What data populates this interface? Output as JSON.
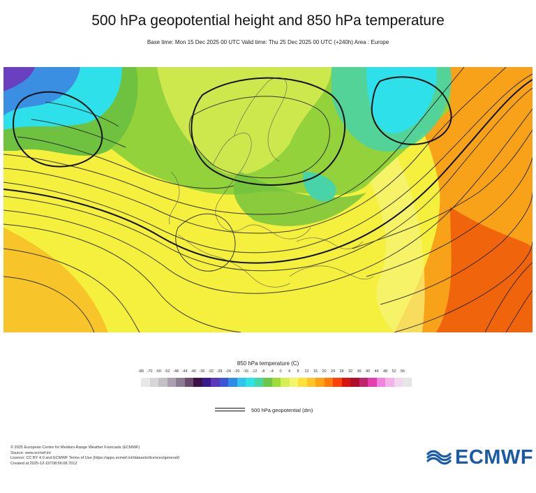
{
  "title": "500 hPa geopotential height and 850 hPa temperature",
  "subtitle": "Base time: Mon 15 Dec 2025 00 UTC Valid time: Thu 25 Dec 2025 00 UTC (+240h) Area : Europe",
  "legend": {
    "title": "850 hPa temperature (C)",
    "ticks": [
      "-80",
      "-70",
      "-60",
      "-52",
      "-48",
      "-44",
      "-40",
      "-36",
      "-32",
      "-28",
      "-24",
      "-20",
      "-16",
      "-12",
      "-8",
      "-4",
      "0",
      "4",
      "8",
      "12",
      "16",
      "20",
      "24",
      "28",
      "32",
      "36",
      "40",
      "44",
      "48",
      "52",
      "56"
    ],
    "colors": [
      "#e8e8e8",
      "#d6d6d6",
      "#c4c0c6",
      "#ad9fb0",
      "#8f7a93",
      "#6a4a6e",
      "#3d1047",
      "#3a1a8c",
      "#5a38b8",
      "#3d57d4",
      "#2e8be6",
      "#30c4ef",
      "#2ee3e6",
      "#45d7a4",
      "#6cc74b",
      "#9ddc3b",
      "#d6ef52",
      "#f5f56b",
      "#ffe13b",
      "#ffc526",
      "#ffa216",
      "#ff7a0b",
      "#f94109",
      "#d9140d",
      "#b00c2c",
      "#c0246c",
      "#e63eb1",
      "#f183dd",
      "#f4b2ea",
      "#f2d6f0",
      "#e6e6e6"
    ]
  },
  "geopotential_label": "500 hPa geopotential (dm)",
  "footer": [
    "© 2025 European Centre for Medium-Range Weather Forecasts (ECMWF)",
    "Source: www.ecmwf.int",
    "Licence: CC BY 4.0 and ECMWF Terms of Use (https://apps.ecmwf.int/datasets/licences/general/)",
    "Created at 2025-12-15T08:56:08.701Z"
  ],
  "logo_text": "ECMWF",
  "logo_color": "#1a5aa6",
  "map_colors": {
    "base_yellow": "#f5ef3d",
    "light_yellow": "#f7f57a",
    "pale_green": "#cde84c",
    "green": "#93d23a",
    "dark_green": "#6fc23f",
    "teal": "#48d3a8",
    "cyan": "#2ee0ea",
    "blue": "#3a8fe3",
    "purple": "#6a3fc0",
    "orange": "#f8a21a",
    "dark_orange": "#f57c0c",
    "red_orange": "#ef5a0a"
  }
}
